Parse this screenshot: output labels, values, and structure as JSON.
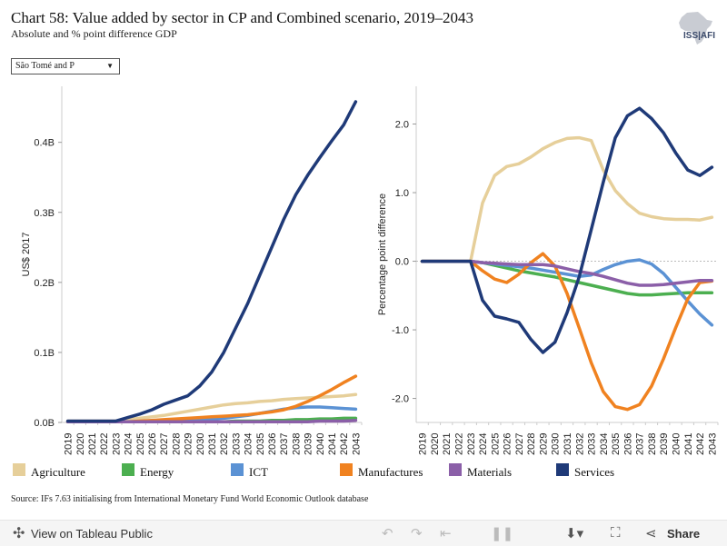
{
  "title": "Chart 58: Value added by sector in CP and Combined scenario, 2019–2043",
  "subtitle": "Absolute and % point difference GDP",
  "logo_text": "ISS|AFI",
  "filter": {
    "selected": "São Tomé and P"
  },
  "source": "Source: IFs 7.63 initialising from International Monetary Fund World Economic Outlook database",
  "footer": {
    "view_label": "View on Tableau Public",
    "share_label": "Share"
  },
  "legend": [
    {
      "label": "Agriculture",
      "color": "#e6cf9a"
    },
    {
      "label": "Energy",
      "color": "#4caf50"
    },
    {
      "label": "ICT",
      "color": "#5b92d4"
    },
    {
      "label": "Manufactures",
      "color": "#f08220"
    },
    {
      "label": "Materials",
      "color": "#8b5fa8"
    },
    {
      "label": "Services",
      "color": "#1f3a78"
    }
  ],
  "chart_data": [
    {
      "type": "line",
      "ylabel": "US$ 2017",
      "y_ticks": [
        "0.0B",
        "0.1B",
        "0.2B",
        "0.3B",
        "0.4B"
      ],
      "y_tick_values": [
        0,
        0.1,
        0.2,
        0.3,
        0.4
      ],
      "ylim": [
        0,
        0.48
      ],
      "x": [
        2019,
        2020,
        2021,
        2022,
        2023,
        2024,
        2025,
        2026,
        2027,
        2028,
        2029,
        2030,
        2031,
        2032,
        2033,
        2034,
        2035,
        2036,
        2037,
        2038,
        2039,
        2040,
        2041,
        2042,
        2043
      ],
      "series": [
        {
          "name": "Agriculture",
          "color": "#e6cf9a",
          "values": [
            0.002,
            0.002,
            0.002,
            0.002,
            0.002,
            0.004,
            0.006,
            0.008,
            0.01,
            0.013,
            0.016,
            0.019,
            0.022,
            0.025,
            0.027,
            0.028,
            0.03,
            0.031,
            0.033,
            0.034,
            0.035,
            0.036,
            0.037,
            0.038,
            0.04
          ]
        },
        {
          "name": "Energy",
          "color": "#4caf50",
          "values": [
            0.001,
            0.001,
            0.001,
            0.001,
            0.001,
            0.001,
            0.001,
            0.001,
            0.001,
            0.001,
            0.001,
            0.001,
            0.001,
            0.001,
            0.002,
            0.002,
            0.002,
            0.003,
            0.003,
            0.004,
            0.004,
            0.005,
            0.005,
            0.006,
            0.006
          ]
        },
        {
          "name": "ICT",
          "color": "#5b92d4",
          "values": [
            0.001,
            0.001,
            0.001,
            0.001,
            0.001,
            0.001,
            0.001,
            0.002,
            0.002,
            0.003,
            0.003,
            0.004,
            0.005,
            0.006,
            0.008,
            0.01,
            0.013,
            0.016,
            0.019,
            0.021,
            0.022,
            0.022,
            0.021,
            0.02,
            0.019
          ]
        },
        {
          "name": "Manufactures",
          "color": "#f08220",
          "values": [
            0.001,
            0.001,
            0.001,
            0.001,
            0.001,
            0.001,
            0.002,
            0.003,
            0.004,
            0.005,
            0.006,
            0.007,
            0.008,
            0.009,
            0.01,
            0.011,
            0.013,
            0.015,
            0.018,
            0.023,
            0.03,
            0.038,
            0.047,
            0.057,
            0.066
          ]
        },
        {
          "name": "Materials",
          "color": "#8b5fa8",
          "values": [
            0.001,
            0.001,
            0.001,
            0.001,
            0.001,
            0.001,
            0.001,
            0.001,
            0.001,
            0.001,
            0.001,
            0.001,
            0.001,
            0.001,
            0.001,
            0.001,
            0.001,
            0.001,
            0.001,
            0.001,
            0.001,
            0.002,
            0.002,
            0.002,
            0.003
          ]
        },
        {
          "name": "Services",
          "color": "#1f3a78",
          "values": [
            0.002,
            0.002,
            0.002,
            0.002,
            0.002,
            0.007,
            0.012,
            0.018,
            0.026,
            0.032,
            0.038,
            0.052,
            0.072,
            0.1,
            0.135,
            0.17,
            0.21,
            0.25,
            0.29,
            0.325,
            0.353,
            0.378,
            0.402,
            0.425,
            0.458
          ]
        }
      ]
    },
    {
      "type": "line",
      "ylabel": "Percentage point difference",
      "y_ticks": [
        "-2.0",
        "-1.0",
        "0.0",
        "1.0",
        "2.0"
      ],
      "y_tick_values": [
        -2,
        -1,
        0,
        1,
        2
      ],
      "ylim": [
        -2.35,
        2.55
      ],
      "x": [
        2019,
        2020,
        2021,
        2022,
        2023,
        2024,
        2025,
        2026,
        2027,
        2028,
        2029,
        2030,
        2031,
        2032,
        2033,
        2034,
        2035,
        2036,
        2037,
        2038,
        2039,
        2040,
        2041,
        2042,
        2043
      ],
      "series": [
        {
          "name": "Agriculture",
          "color": "#e6cf9a",
          "values": [
            0,
            0,
            0,
            0,
            0,
            0.85,
            1.25,
            1.38,
            1.42,
            1.52,
            1.64,
            1.73,
            1.79,
            1.8,
            1.76,
            1.33,
            1.03,
            0.84,
            0.7,
            0.65,
            0.62,
            0.61,
            0.61,
            0.6,
            0.64
          ]
        },
        {
          "name": "Energy",
          "color": "#4caf50",
          "values": [
            0,
            0,
            0,
            0,
            0,
            -0.02,
            -0.06,
            -0.1,
            -0.14,
            -0.17,
            -0.2,
            -0.23,
            -0.27,
            -0.31,
            -0.35,
            -0.39,
            -0.43,
            -0.47,
            -0.49,
            -0.49,
            -0.48,
            -0.47,
            -0.46,
            -0.46,
            -0.46
          ]
        },
        {
          "name": "ICT",
          "color": "#5b92d4",
          "values": [
            0,
            0,
            0,
            0,
            0,
            -0.02,
            -0.04,
            -0.06,
            -0.08,
            -0.1,
            -0.13,
            -0.16,
            -0.19,
            -0.22,
            -0.2,
            -0.12,
            -0.05,
            0.0,
            0.02,
            -0.04,
            -0.18,
            -0.38,
            -0.58,
            -0.77,
            -0.93
          ]
        },
        {
          "name": "Manufactures",
          "color": "#f08220",
          "values": [
            0,
            0,
            0,
            0,
            0,
            -0.14,
            -0.26,
            -0.31,
            -0.19,
            -0.02,
            0.11,
            -0.07,
            -0.47,
            -0.97,
            -1.48,
            -1.9,
            -2.12,
            -2.16,
            -2.09,
            -1.82,
            -1.42,
            -0.97,
            -0.55,
            -0.31,
            -0.29
          ]
        },
        {
          "name": "Materials",
          "color": "#8b5fa8",
          "values": [
            0,
            0,
            0,
            0,
            0,
            -0.02,
            -0.03,
            -0.04,
            -0.05,
            -0.05,
            -0.05,
            -0.07,
            -0.11,
            -0.15,
            -0.18,
            -0.22,
            -0.27,
            -0.32,
            -0.35,
            -0.35,
            -0.34,
            -0.32,
            -0.3,
            -0.28,
            -0.28
          ]
        },
        {
          "name": "Services",
          "color": "#1f3a78",
          "values": [
            0,
            0,
            0,
            0,
            0,
            -0.57,
            -0.8,
            -0.84,
            -0.89,
            -1.14,
            -1.33,
            -1.18,
            -0.75,
            -0.23,
            0.46,
            1.15,
            1.8,
            2.12,
            2.23,
            2.08,
            1.87,
            1.58,
            1.33,
            1.25,
            1.37
          ]
        }
      ]
    }
  ]
}
